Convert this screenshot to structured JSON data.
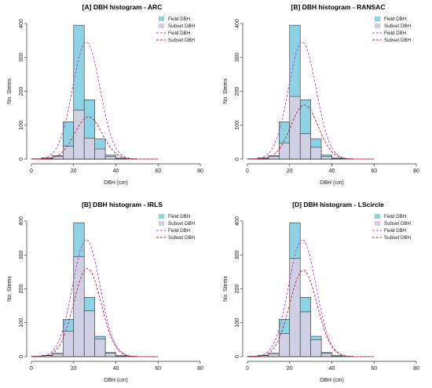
{
  "colors": {
    "field_bar": "#8dd3e6",
    "subset_bar": "#cfd0e3",
    "bar_edge": "#333333",
    "field_curve": "#c040c8",
    "subset_curve": "#c8202a",
    "axis": "#333333"
  },
  "chart_data": [
    {
      "type": "bar",
      "title": "[A] DBH histogram - ARC",
      "xlabel": "DBH (cm)",
      "ylabel": "No. Stems",
      "xlim": [
        0,
        80
      ],
      "ylim": [
        0,
        400
      ],
      "xticks": [
        "0",
        "20",
        "40",
        "60",
        "80"
      ],
      "yticks": [
        "0",
        "100",
        "200",
        "300",
        "400"
      ],
      "legend_position": "top-right",
      "legend": [
        "Field DBH",
        "Subset DBH",
        "Field DBH",
        "Subset DBH"
      ],
      "bin_edges": [
        0,
        5,
        10,
        15,
        20,
        25,
        30,
        35,
        40,
        45,
        50,
        55,
        60
      ],
      "series": [
        {
          "name": "Field DBH",
          "values": [
            1,
            4,
            10,
            110,
            395,
            175,
            60,
            12,
            3,
            1,
            0,
            0
          ]
        },
        {
          "name": "Subset DBH",
          "values": [
            0,
            2,
            8,
            38,
            145,
            62,
            30,
            8,
            2,
            0,
            0,
            0
          ]
        }
      ],
      "curves": [
        {
          "name": "Field DBH",
          "mean": 26,
          "sd": 6.5,
          "peak": 345
        },
        {
          "name": "Subset DBH",
          "mean": 27,
          "sd": 6.5,
          "peak": 125
        }
      ]
    },
    {
      "type": "bar",
      "title": "[B] DBH histogram - RANSAC",
      "xlabel": "DBH (cm)",
      "ylabel": "No. Stems",
      "xlim": [
        0,
        80
      ],
      "ylim": [
        0,
        400
      ],
      "xticks": [
        "0",
        "20",
        "40",
        "60",
        "80"
      ],
      "yticks": [
        "0",
        "100",
        "200",
        "300",
        "400"
      ],
      "legend_position": "top-right",
      "legend": [
        "Field DBH",
        "Subset DBH",
        "Field DBH",
        "Subset DBH"
      ],
      "bin_edges": [
        0,
        5,
        10,
        15,
        20,
        25,
        30,
        35,
        40,
        45,
        50,
        55,
        60
      ],
      "series": [
        {
          "name": "Field DBH",
          "values": [
            1,
            4,
            10,
            110,
            395,
            175,
            60,
            12,
            3,
            1,
            0,
            0
          ]
        },
        {
          "name": "Subset DBH",
          "values": [
            0,
            2,
            8,
            48,
            185,
            75,
            35,
            8,
            2,
            0,
            0,
            0
          ]
        }
      ],
      "curves": [
        {
          "name": "Field DBH",
          "mean": 26,
          "sd": 6.5,
          "peak": 345
        },
        {
          "name": "Subset DBH",
          "mean": 27,
          "sd": 6.5,
          "peak": 160
        }
      ]
    },
    {
      "type": "bar",
      "title": "[B] DBH histogram - IRLS",
      "xlabel": "DBH (cm)",
      "ylabel": "No. Stems",
      "xlim": [
        0,
        80
      ],
      "ylim": [
        0,
        400
      ],
      "xticks": [
        "0",
        "20",
        "40",
        "60",
        "80"
      ],
      "yticks": [
        "0",
        "100",
        "200",
        "300",
        "400"
      ],
      "legend_position": "top-right",
      "legend": [
        "Field DBH",
        "Subset DBH",
        "Field DBH",
        "Subset DBH"
      ],
      "bin_edges": [
        0,
        5,
        10,
        15,
        20,
        25,
        30,
        35,
        40,
        45,
        50,
        55,
        60
      ],
      "series": [
        {
          "name": "Field DBH",
          "values": [
            1,
            4,
            10,
            110,
            395,
            175,
            60,
            12,
            3,
            1,
            0,
            0
          ]
        },
        {
          "name": "Subset DBH",
          "values": [
            1,
            3,
            9,
            75,
            295,
            135,
            52,
            10,
            2,
            0,
            0,
            0
          ]
        }
      ],
      "curves": [
        {
          "name": "Field DBH",
          "mean": 26,
          "sd": 6.5,
          "peak": 345
        },
        {
          "name": "Subset DBH",
          "mean": 26.5,
          "sd": 6.5,
          "peak": 260
        }
      ]
    },
    {
      "type": "bar",
      "title": "[D] DBH histogram - LScircle",
      "xlabel": "DBH (cm)",
      "ylabel": "No. Stems",
      "xlim": [
        0,
        80
      ],
      "ylim": [
        0,
        400
      ],
      "xticks": [
        "0",
        "20",
        "40",
        "60",
        "80"
      ],
      "yticks": [
        "0",
        "100",
        "200",
        "300",
        "400"
      ],
      "legend_position": "top-right",
      "legend": [
        "Field DBH",
        "Subset DBH",
        "Field DBH",
        "Subset DBH"
      ],
      "bin_edges": [
        0,
        5,
        10,
        15,
        20,
        25,
        30,
        35,
        40,
        45,
        50,
        55,
        60
      ],
      "series": [
        {
          "name": "Field DBH",
          "values": [
            1,
            4,
            10,
            110,
            395,
            175,
            60,
            12,
            3,
            1,
            0,
            0
          ]
        },
        {
          "name": "Subset DBH",
          "values": [
            1,
            3,
            9,
            68,
            290,
            132,
            50,
            10,
            2,
            0,
            0,
            0
          ]
        }
      ],
      "curves": [
        {
          "name": "Field DBH",
          "mean": 26,
          "sd": 6.5,
          "peak": 345
        },
        {
          "name": "Subset DBH",
          "mean": 26.5,
          "sd": 6.5,
          "peak": 255
        }
      ]
    }
  ]
}
